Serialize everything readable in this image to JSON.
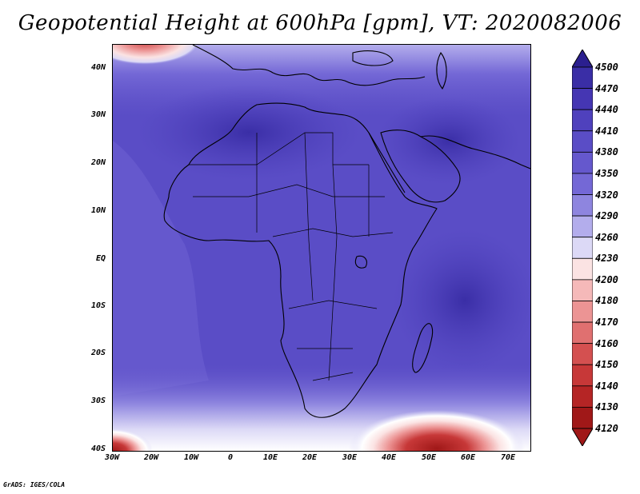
{
  "title": "Geopotential Height at 600hPa [gpm], VT: 2020082006",
  "credit": "GrADS: IGES/COLA",
  "lat_labels": [
    "40N",
    "30N",
    "20N",
    "10N",
    "EQ",
    "10S",
    "20S",
    "30S",
    "40S"
  ],
  "lon_labels": [
    "30W",
    "20W",
    "10W",
    "0",
    "10E",
    "20E",
    "30E",
    "40E",
    "50E",
    "60E",
    "70E"
  ],
  "colorbar": {
    "levels": [
      "4500",
      "4470",
      "4440",
      "4410",
      "4380",
      "4350",
      "4320",
      "4290",
      "4260",
      "4230",
      "4200",
      "4180",
      "4170",
      "4160",
      "4150",
      "4140",
      "4130",
      "4120"
    ],
    "colors": [
      "#2b1f8f",
      "#3a2ea6",
      "#4536b3",
      "#4f41bd",
      "#5a4dc6",
      "#6558cd",
      "#7468d6",
      "#8e85df",
      "#b3adec",
      "#dcd9f6",
      "#fbe3e3",
      "#f5b9b9",
      "#ec9494",
      "#e07070",
      "#d45050",
      "#c73838",
      "#b52525",
      "#a01818"
    ]
  },
  "map": {
    "lon_range": [
      -30,
      75
    ],
    "lat_range": [
      -40,
      45
    ],
    "colors": {
      "deep_blue": "#4034ad",
      "blue": "#5446bb",
      "mid_blue": "#6558cd",
      "light_blue": "#8e85df",
      "pale": "#dcd9f6",
      "white": "#ffffff",
      "pink": "#f5b9b9",
      "red": "#c73838",
      "dark_red": "#a01818",
      "outline": "#000000"
    }
  }
}
